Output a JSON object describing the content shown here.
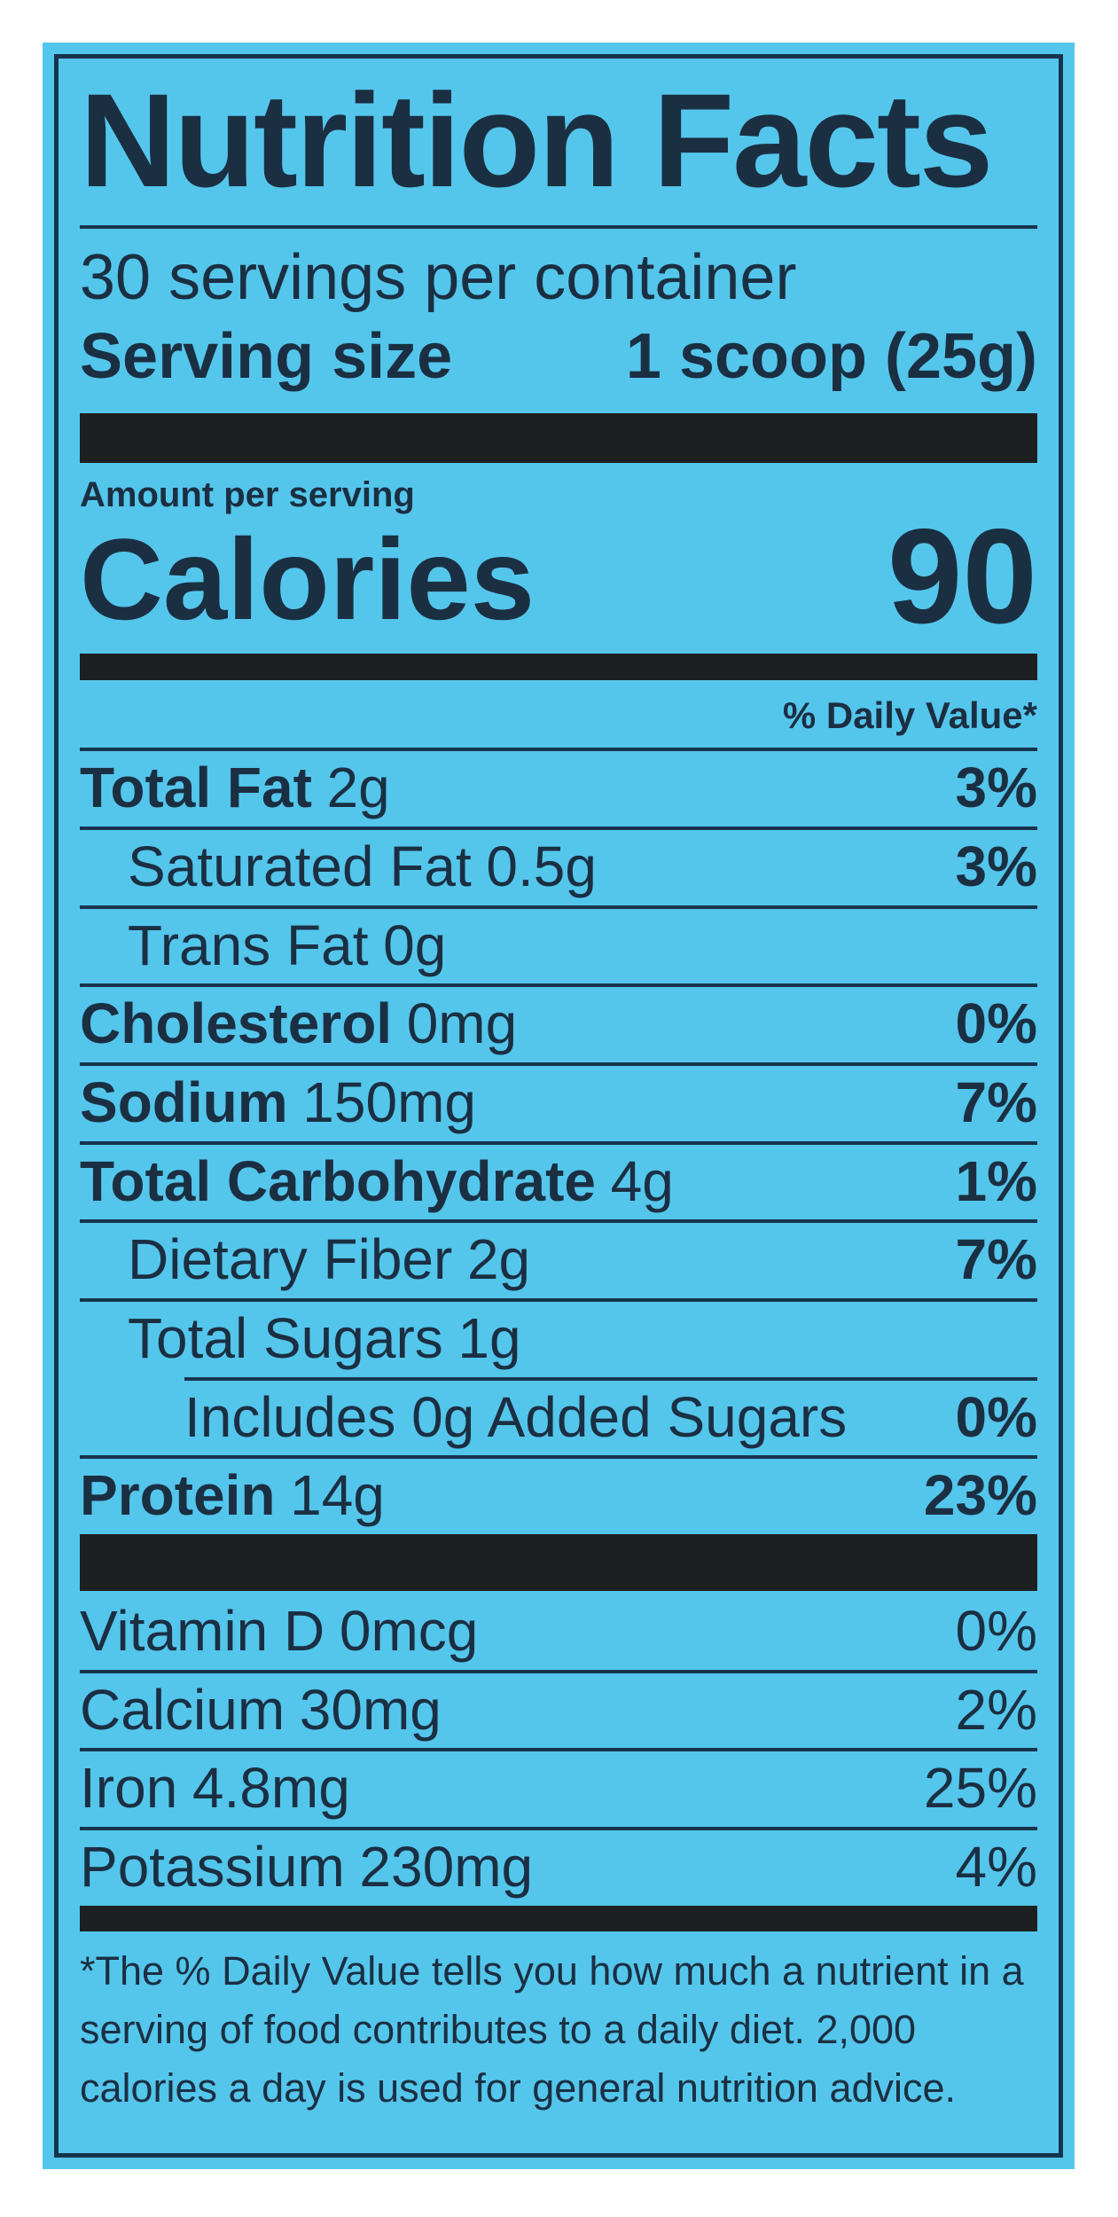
{
  "label": {
    "title": "Nutrition Facts",
    "servings_per_container": "30 servings per container",
    "serving_size_label": "Serving size",
    "serving_size_value": "1 scoop (25g)",
    "amount_per_serving": "Amount per serving",
    "calories_label": "Calories",
    "calories_value": "90",
    "daily_value_header": "% Daily Value*",
    "nutrients": [
      {
        "name": "Total Fat",
        "amount": "2g",
        "dv": "3%",
        "bold": true,
        "indent": 0
      },
      {
        "name": "Saturated Fat",
        "amount": "0.5g",
        "dv": "3%",
        "bold": false,
        "indent": 1
      },
      {
        "name": "Trans Fat",
        "amount": "0g",
        "dv": "",
        "bold": false,
        "indent": 1
      },
      {
        "name": "Cholesterol",
        "amount": "0mg",
        "dv": "0%",
        "bold": true,
        "indent": 0
      },
      {
        "name": "Sodium",
        "amount": "150mg",
        "dv": "7%",
        "bold": true,
        "indent": 0
      },
      {
        "name": "Total Carbohydrate",
        "amount": "4g",
        "dv": "1%",
        "bold": true,
        "indent": 0
      },
      {
        "name": "Dietary Fiber",
        "amount": "2g",
        "dv": "7%",
        "bold": false,
        "indent": 1
      },
      {
        "name": "Total Sugars",
        "amount": "1g",
        "dv": "",
        "bold": false,
        "indent": 1
      },
      {
        "name": "Includes 0g Added Sugars",
        "amount": "",
        "dv": "0%",
        "bold": false,
        "indent": 2,
        "indented_rule": true
      },
      {
        "name": "Protein",
        "amount": "14g",
        "dv": "23%",
        "bold": true,
        "indent": 0
      }
    ],
    "micronutrients": [
      {
        "name": "Vitamin D",
        "amount": "0mcg",
        "dv": "0%"
      },
      {
        "name": "Calcium",
        "amount": "30mg",
        "dv": "2%"
      },
      {
        "name": "Iron",
        "amount": "4.8mg",
        "dv": "25%"
      },
      {
        "name": "Potassium",
        "amount": "230mg",
        "dv": "4%"
      }
    ],
    "footnote": "*The % Daily Value tells you how much a nutrient in a serving of food contributes to a daily diet. 2,000 calories a day is used for general nutrition advice.",
    "colors": {
      "background": "#54c6ec",
      "text": "#1b2f42",
      "hairline": "#17344d",
      "bar": "#1d2021"
    }
  }
}
